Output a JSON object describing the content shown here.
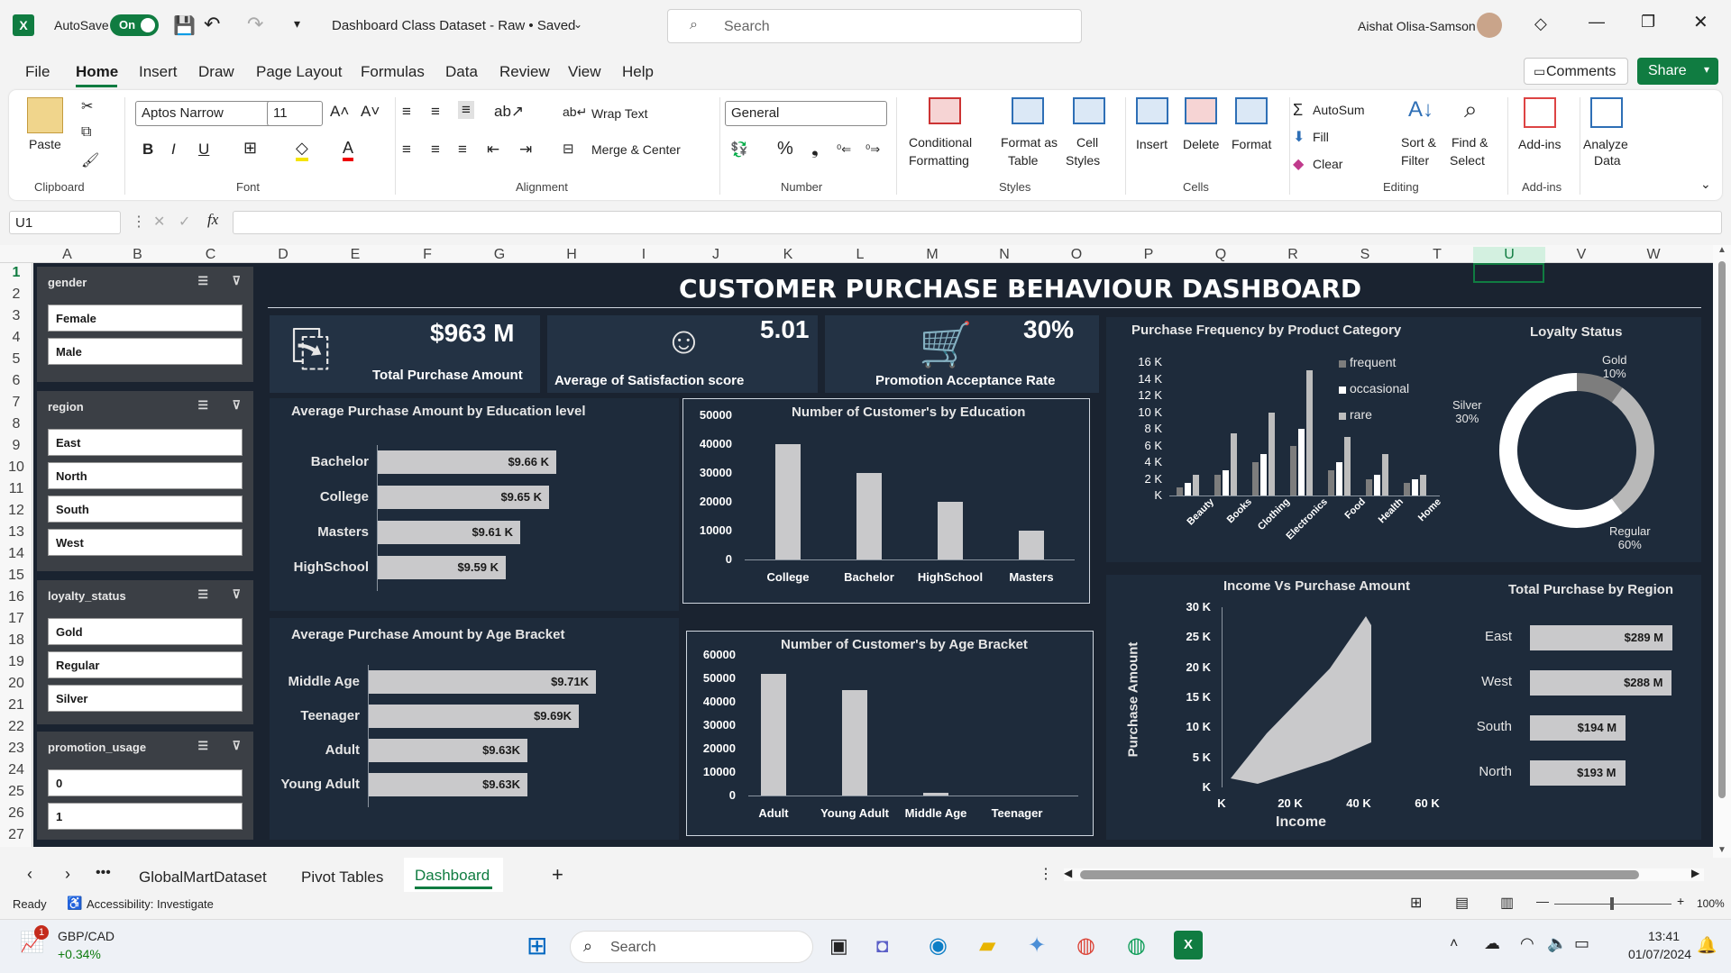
{
  "titlebar": {
    "autosave_label": "AutoSave",
    "autosave_state": "On",
    "doc_title": "Dashboard Class Dataset - Raw • Saved",
    "search_placeholder": "Search",
    "user_name": "Aishat Olisa-Samson"
  },
  "menu": {
    "items": [
      "File",
      "Home",
      "Insert",
      "Draw",
      "Page Layout",
      "Formulas",
      "Data",
      "Review",
      "View",
      "Help"
    ],
    "comments": "Comments",
    "share": "Share"
  },
  "ribbon": {
    "clipboard": {
      "paste": "Paste",
      "group": "Clipboard"
    },
    "font": {
      "name": "Aptos Narrow",
      "size": "11",
      "group": "Font"
    },
    "alignment": {
      "wrap": "Wrap Text",
      "merge": "Merge & Center",
      "group": "Alignment"
    },
    "number": {
      "format": "General",
      "group": "Number"
    },
    "styles": {
      "cond": "Conditional",
      "cond2": "Formatting",
      "fmt": "Format as",
      "fmt2": "Table",
      "cell": "Cell",
      "cell2": "Styles",
      "group": "Styles"
    },
    "cells": {
      "insert": "Insert",
      "delete": "Delete",
      "format": "Format",
      "group": "Cells"
    },
    "editing": {
      "autosum": "AutoSum",
      "fill": "Fill",
      "clear": "Clear",
      "sort": "Sort &",
      "sort2": "Filter",
      "find": "Find &",
      "find2": "Select",
      "group": "Editing"
    },
    "addins": {
      "label": "Add-ins",
      "group": "Add-ins"
    },
    "analyze": {
      "label": "Analyze",
      "label2": "Data"
    }
  },
  "formula_bar": {
    "name_box": "U1",
    "fx": "fx",
    "value": ""
  },
  "columns": [
    "A",
    "B",
    "C",
    "D",
    "E",
    "F",
    "G",
    "H",
    "I",
    "J",
    "K",
    "L",
    "M",
    "N",
    "O",
    "P",
    "Q",
    "R",
    "S",
    "T",
    "U",
    "V",
    "W"
  ],
  "rows": [
    "1",
    "2",
    "3",
    "4",
    "5",
    "6",
    "7",
    "8",
    "9",
    "10",
    "11",
    "12",
    "13",
    "14",
    "15",
    "16",
    "17",
    "18",
    "19",
    "20",
    "21",
    "22",
    "23",
    "24",
    "25",
    "26",
    "27"
  ],
  "slicers": [
    {
      "title": "gender",
      "items": [
        "Female",
        "Male"
      ]
    },
    {
      "title": "region",
      "items": [
        "East",
        "North",
        "South",
        "West"
      ]
    },
    {
      "title": "loyalty_status",
      "items": [
        "Gold",
        "Regular",
        "Silver"
      ]
    },
    {
      "title": "promotion_usage",
      "items": [
        "0",
        "1"
      ]
    }
  ],
  "dashboard": {
    "title": "CUSTOMER PURCHASE BEHAVIOUR DASHBOARD",
    "kpis": [
      {
        "value": "$963 M",
        "label": "Total Purchase Amount"
      },
      {
        "value": "5.01",
        "label": "Average of Satisfaction score"
      },
      {
        "value": "30%",
        "label": "Promotion Acceptance Rate"
      }
    ]
  },
  "chart_data": [
    {
      "type": "bar",
      "title": "Average Purchase Amount by Education level",
      "categories": [
        "Bachelor",
        "College",
        "Masters",
        "HighSchool"
      ],
      "values": [
        9.66,
        9.65,
        9.61,
        9.59
      ],
      "labels": [
        "$9.66 K",
        "$9.65 K",
        "$9.61 K",
        "$9.59 K"
      ]
    },
    {
      "type": "bar",
      "title": "Number of Customer's by Education",
      "categories": [
        "College",
        "Bachelor",
        "HighSchool",
        "Masters"
      ],
      "values": [
        40000,
        30000,
        20000,
        10000
      ],
      "yticks": [
        "50000",
        "40000",
        "30000",
        "20000",
        "10000",
        "0"
      ],
      "ylim": [
        0,
        50000
      ]
    },
    {
      "type": "bar",
      "title": "Average Purchase Amount by Age Bracket",
      "categories": [
        "Middle  Age",
        "Teenager",
        "Adult",
        "Young Adult"
      ],
      "values": [
        9.71,
        9.69,
        9.63,
        9.63
      ],
      "labels": [
        "$9.71K",
        "$9.69K",
        "$9.63K",
        "$9.63K"
      ]
    },
    {
      "type": "bar",
      "title": "Number of Customer's by Age Bracket",
      "categories": [
        "Adult",
        "Young  Adult",
        "Middle  Age",
        "Teenager"
      ],
      "values": [
        52000,
        45000,
        1000,
        0
      ],
      "yticks": [
        "60000",
        "50000",
        "40000",
        "30000",
        "20000",
        "10000",
        "0"
      ],
      "ylim": [
        0,
        60000
      ]
    },
    {
      "type": "bar",
      "title": "Purchase Frequency by Product Category",
      "categories": [
        "Beauty",
        "Books",
        "Clothing",
        "Electronics",
        "Food",
        "Health",
        "Home"
      ],
      "series": [
        {
          "name": "frequent",
          "values": [
            1000,
            2500,
            4000,
            6000,
            3000,
            2000,
            1500
          ]
        },
        {
          "name": "occasional",
          "values": [
            1500,
            3000,
            5000,
            8000,
            4000,
            2500,
            2000
          ]
        },
        {
          "name": "rare",
          "values": [
            2500,
            7500,
            10000,
            15000,
            7000,
            5000,
            2500
          ]
        }
      ],
      "yticks": [
        "16 K",
        "14 K",
        "12 K",
        "10 K",
        "8 K",
        "6 K",
        "4 K",
        "2 K",
        "K"
      ],
      "ylim": [
        0,
        16000
      ]
    },
    {
      "type": "pie",
      "title": "Loyalty Status",
      "categories": [
        "Gold",
        "Silver",
        "Regular"
      ],
      "values": [
        10,
        30,
        60
      ],
      "labels": [
        "Gold\n10%",
        "Silver\n30%",
        "Regular\n60%"
      ]
    },
    {
      "type": "scatter",
      "title": "Income Vs Purchase Amount",
      "xlabel": "Income",
      "ylabel": "Purchase Amount",
      "xticks": [
        "K",
        "20 K",
        "40 K",
        "60 K"
      ],
      "yticks": [
        "30 K",
        "25 K",
        "20 K",
        "15 K",
        "10 K",
        "5 K",
        "K"
      ],
      "xlim": [
        0,
        60000
      ],
      "ylim": [
        0,
        30000
      ]
    },
    {
      "type": "bar",
      "title": "Total Purchase by Region",
      "categories": [
        "East",
        "West",
        "South",
        "North"
      ],
      "values": [
        289,
        288,
        194,
        193
      ],
      "labels": [
        "$289 M",
        "$288 M",
        "$194 M",
        "$193 M"
      ]
    }
  ],
  "sheet_tabs": {
    "items": [
      "GlobalMartDataset",
      "Pivot Tables",
      "Dashboard"
    ],
    "active": "Dashboard"
  },
  "status": {
    "ready": "Ready",
    "accessibility": "Accessibility: Investigate",
    "zoom": "100%"
  },
  "taskbar": {
    "stock_pair": "GBP/CAD",
    "stock_change": "+0.34%",
    "badge": "1",
    "search": "Search",
    "time": "13:41",
    "date": "01/07/2024"
  }
}
